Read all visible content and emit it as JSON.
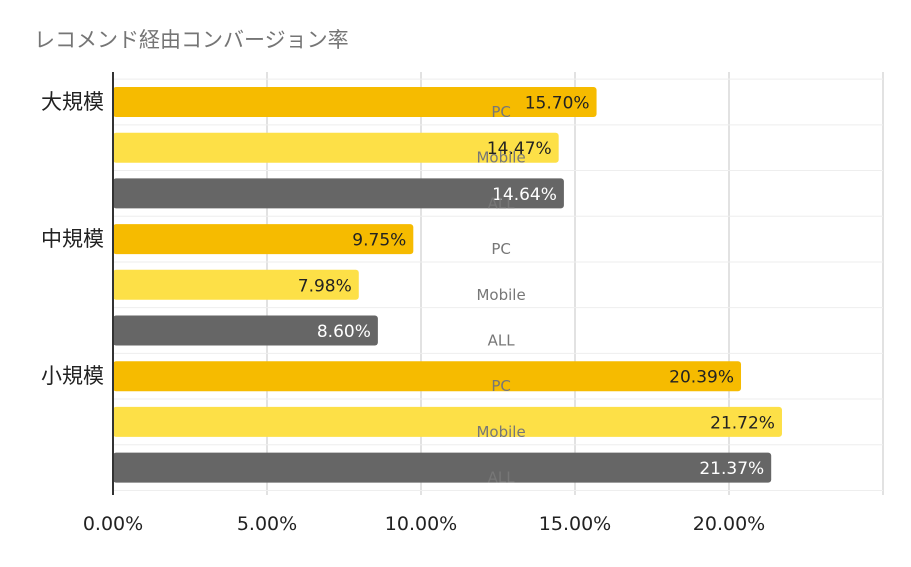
{
  "chart_data": {
    "type": "bar",
    "orientation": "horizontal",
    "title": "レコメンド経由コンバージョン率",
    "groups": [
      "大規模",
      "中規模",
      "小規模"
    ],
    "subcategories": [
      "PC",
      "Mobile",
      "ALL"
    ],
    "series": [
      {
        "name": "PC",
        "color": "#f6bb00",
        "values": [
          15.7,
          9.75,
          20.39
        ]
      },
      {
        "name": "Mobile",
        "color": "#fde047",
        "values": [
          14.47,
          7.98,
          21.72
        ]
      },
      {
        "name": "ALL",
        "color": "#666666",
        "values": [
          14.64,
          8.6,
          21.37
        ]
      }
    ],
    "value_labels": [
      [
        "15.70%",
        "14.47%",
        "14.64%"
      ],
      [
        "9.75%",
        "7.98%",
        "8.60%"
      ],
      [
        "20.39%",
        "21.72%",
        "21.37%"
      ]
    ],
    "x_ticks": [
      "0.00%",
      "5.00%",
      "10.00%",
      "15.00%",
      "20.00%"
    ],
    "x_tick_values": [
      0,
      5,
      10,
      15,
      20
    ],
    "xlim": [
      0,
      25
    ],
    "grid": true,
    "legend": "none",
    "colors": {
      "label_dark": "#222222",
      "label_light": "#ffffff",
      "subcategory_label": "#777777",
      "title": "#757575",
      "grid": "#d9d9d9",
      "axis": "#333333"
    }
  }
}
